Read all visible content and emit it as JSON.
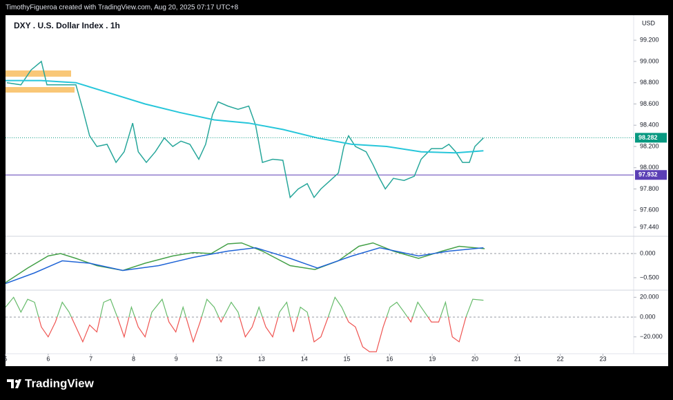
{
  "header": {
    "credit": "TimothyFigueroa created with TradingView.com, Aug 20, 2025 07:17 UTC+8"
  },
  "footer": {
    "brand": "TradingView"
  },
  "chart_data": [
    {
      "type": "line",
      "title": "DXY . U.S. Dollar Index . 1h",
      "unit": "USD",
      "xlim": [
        0,
        14.72
      ],
      "ylim": [
        97.355,
        99.435
      ],
      "yticks": [
        {
          "value": 99.2,
          "label": "99.200"
        },
        {
          "value": 99.0,
          "label": "99.000"
        },
        {
          "value": 98.8,
          "label": "98.800"
        },
        {
          "value": 98.6,
          "label": "98.600"
        },
        {
          "value": 98.4,
          "label": "98.400"
        },
        {
          "value": 98.2,
          "label": "98.200"
        },
        {
          "value": 98.0,
          "label": "98.000"
        },
        {
          "value": 97.8,
          "label": "97.800"
        },
        {
          "value": 97.6,
          "label": "97.600"
        },
        {
          "value": 97.44,
          "label": "97.440"
        }
      ],
      "series": [
        {
          "color": "#26a69a",
          "x": [
            0.03,
            0.36,
            0.6,
            0.84,
            0.97,
            1.33,
            1.65,
            1.81,
            1.97,
            2.14,
            2.38,
            2.59,
            2.78,
            2.98,
            3.11,
            3.3,
            3.51,
            3.72,
            3.92,
            4.11,
            4.32,
            4.53,
            4.69,
            4.85,
            4.98,
            5.21,
            5.45,
            5.7,
            5.86,
            6.02,
            6.26,
            6.5,
            6.67,
            6.86,
            7.07,
            7.23,
            7.39,
            7.61,
            7.8,
            7.93,
            8.04,
            8.2,
            8.45,
            8.61,
            8.74,
            8.9,
            9.09,
            9.34,
            9.58,
            9.74,
            9.98,
            10.23,
            10.39,
            10.55,
            10.71,
            10.87,
            11.0,
            11.2
          ],
          "values": [
            98.8,
            98.78,
            98.92,
            99.0,
            98.78,
            98.78,
            98.78,
            98.55,
            98.3,
            98.2,
            98.22,
            98.05,
            98.15,
            98.42,
            98.15,
            98.05,
            98.15,
            98.28,
            98.2,
            98.25,
            98.22,
            98.08,
            98.22,
            98.5,
            98.62,
            98.58,
            98.55,
            98.58,
            98.4,
            98.05,
            98.08,
            98.07,
            97.72,
            97.8,
            97.85,
            97.72,
            97.8,
            97.88,
            97.95,
            98.2,
            98.3,
            98.2,
            98.15,
            98.03,
            97.92,
            97.8,
            97.9,
            97.88,
            97.92,
            98.08,
            98.18,
            98.18,
            98.22,
            98.15,
            98.05,
            98.05,
            98.2,
            98.28
          ]
        },
        {
          "color": "#26c6da",
          "x": [
            0.0,
            0.84,
            1.65,
            2.46,
            3.27,
            4.08,
            4.89,
            5.7,
            6.5,
            7.31,
            8.12,
            8.93,
            9.74,
            10.55,
            11.2
          ],
          "values": [
            98.82,
            98.82,
            98.8,
            98.7,
            98.6,
            98.52,
            98.45,
            98.42,
            98.36,
            98.28,
            98.22,
            98.2,
            98.15,
            98.14,
            98.16
          ]
        }
      ],
      "last_price": 98.282,
      "last_price_color": "#089981",
      "level": 97.932,
      "level_color": "#5b3fb5"
    },
    {
      "type": "line",
      "xlim": [
        0,
        14.72
      ],
      "ylim": [
        -0.757,
        0.357
      ],
      "yticks": [
        {
          "value": 0,
          "label": "0.000"
        },
        {
          "value": -0.5,
          "label": "−0.500"
        }
      ],
      "series": [
        {
          "color": "#43a047",
          "x": [
            0.0,
            0.52,
            1.0,
            1.29,
            1.65,
            2.14,
            2.75,
            3.27,
            3.92,
            4.4,
            4.82,
            5.21,
            5.53,
            6.02,
            6.67,
            7.25,
            7.8,
            8.28,
            8.61,
            9.09,
            9.68,
            10.23,
            10.63,
            11.23
          ],
          "values": [
            -0.6,
            -0.3,
            -0.05,
            0.0,
            -0.1,
            -0.25,
            -0.35,
            -0.2,
            -0.05,
            0.02,
            0.0,
            0.2,
            0.22,
            0.05,
            -0.25,
            -0.33,
            -0.15,
            0.15,
            0.22,
            0.05,
            -0.1,
            0.05,
            0.15,
            0.1
          ]
        },
        {
          "color": "#1e63d6",
          "x": [
            0.0,
            0.68,
            1.33,
            1.97,
            2.75,
            3.59,
            4.4,
            5.21,
            5.86,
            6.67,
            7.31,
            8.12,
            8.77,
            9.68,
            10.39,
            11.2
          ],
          "values": [
            -0.62,
            -0.4,
            -0.15,
            -0.2,
            -0.35,
            -0.25,
            -0.08,
            0.05,
            0.12,
            -0.1,
            -0.3,
            -0.05,
            0.12,
            -0.05,
            0.05,
            0.12
          ]
        }
      ]
    },
    {
      "type": "oscillator",
      "xlim": [
        0,
        14.72
      ],
      "ylim": [
        -37,
        27.2
      ],
      "yticks": [
        {
          "value": 20,
          "label": "20.000"
        },
        {
          "value": 0,
          "label": "0.000"
        },
        {
          "value": -20,
          "label": "−20.000"
        }
      ],
      "colors": [
        "#66bb6a",
        "#ef5350"
      ],
      "xticks": [
        {
          "value": 0,
          "label": "5"
        },
        {
          "value": 1,
          "label": "6"
        },
        {
          "value": 2,
          "label": "7"
        },
        {
          "value": 3,
          "label": "8"
        },
        {
          "value": 4,
          "label": "9"
        },
        {
          "value": 5,
          "label": "12"
        },
        {
          "value": 6,
          "label": "13"
        },
        {
          "value": 7,
          "label": "14"
        },
        {
          "value": 8,
          "label": "15"
        },
        {
          "value": 9,
          "label": "16"
        },
        {
          "value": 10,
          "label": "19"
        },
        {
          "value": 11,
          "label": "20"
        },
        {
          "value": 12,
          "label": "21"
        },
        {
          "value": 13,
          "label": "22"
        },
        {
          "value": 14,
          "label": "23"
        }
      ],
      "series": [
        {
          "x": [
            0.0,
            0.19,
            0.36,
            0.52,
            0.68,
            0.84,
            1.0,
            1.17,
            1.33,
            1.49,
            1.65,
            1.81,
            1.97,
            2.14,
            2.3,
            2.46,
            2.62,
            2.78,
            2.95,
            3.11,
            3.27,
            3.43,
            3.67,
            3.83,
            3.99,
            4.16,
            4.4,
            4.56,
            4.72,
            4.89,
            5.05,
            5.29,
            5.45,
            5.62,
            5.78,
            5.94,
            6.1,
            6.26,
            6.42,
            6.59,
            6.75,
            6.91,
            7.07,
            7.23,
            7.39,
            7.56,
            7.72,
            7.88,
            8.04,
            8.2,
            8.37,
            8.53,
            8.69,
            8.85,
            9.01,
            9.17,
            9.34,
            9.5,
            9.66,
            9.82,
            9.98,
            10.15,
            10.31,
            10.47,
            10.63,
            10.79,
            10.95,
            11.2
          ],
          "values": [
            10,
            20,
            5,
            18,
            15,
            -10,
            -20,
            -5,
            15,
            5,
            -10,
            -25,
            -8,
            -15,
            15,
            18,
            0,
            -20,
            10,
            -10,
            -20,
            5,
            18,
            -5,
            -15,
            10,
            -25,
            -5,
            18,
            10,
            -5,
            15,
            5,
            -20,
            -10,
            10,
            -10,
            -20,
            5,
            15,
            -15,
            10,
            5,
            -25,
            -20,
            0,
            20,
            10,
            -5,
            -10,
            -30,
            -35,
            -35,
            -10,
            10,
            15,
            5,
            -5,
            15,
            5,
            -5,
            -5,
            15,
            -20,
            -25,
            0,
            18,
            17
          ]
        }
      ]
    }
  ]
}
